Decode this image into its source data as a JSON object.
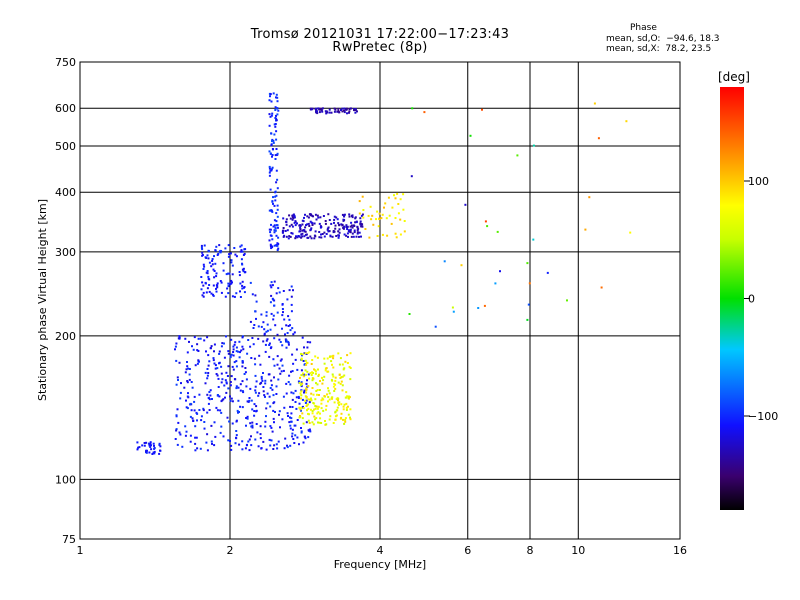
{
  "header": {
    "title_line1": "Tromsø 20121031 17:22:00−17:23:43",
    "title_line2": "RwPretec (8p)",
    "phase_heading": "Phase",
    "stats": [
      "mean, sd,O:  −94.6, 18.3",
      "mean, sd,X:  78.2, 23.5"
    ]
  },
  "colorbar": {
    "unit_label": "[deg]",
    "range": [
      -180,
      180
    ],
    "tick_values": [
      100,
      0,
      -100
    ],
    "tick_labels": [
      "100",
      "0",
      "−100"
    ]
  },
  "chart_data": {
    "type": "scatter",
    "title": "Tromsø 20121031 17:22:00−17:23:43",
    "subtitle": "RwPretec (8p)",
    "xlabel": "Frequency [MHz]",
    "ylabel": "Stationary phase Virtual Height [km]",
    "x_scale": "log",
    "y_scale": "log",
    "xlim": [
      1,
      16
    ],
    "ylim": [
      75,
      750
    ],
    "x_ticks": [
      1,
      2,
      4,
      6,
      8,
      10,
      16
    ],
    "y_ticks": [
      75,
      100,
      200,
      300,
      400,
      500,
      600,
      750
    ],
    "x_grid": [
      2,
      4,
      6,
      8,
      10
    ],
    "y_grid": [
      100,
      200,
      300,
      400,
      500,
      600
    ],
    "clusters": [
      {
        "name": "O-trace low E/F1 (blue)",
        "x": [
          1.55,
          2.9
        ],
        "y": [
          115,
          200
        ],
        "n": 500,
        "phase": [
          -120,
          -90
        ]
      },
      {
        "name": "O-trace F2 low (blue)",
        "x": [
          1.75,
          2.15
        ],
        "y": [
          240,
          310
        ],
        "n": 130,
        "phase": [
          -115,
          -95
        ]
      },
      {
        "name": "O-trace F2 cusp (blue)",
        "x": [
          2.2,
          2.7
        ],
        "y": [
          200,
          260
        ],
        "n": 70,
        "phase": [
          -120,
          -90
        ]
      },
      {
        "name": "O-trace base (blue)",
        "x": [
          1.3,
          1.45
        ],
        "y": [
          113,
          120
        ],
        "n": 35,
        "phase": [
          -115,
          -95
        ]
      },
      {
        "name": "O-trace vertical (blue)",
        "x": [
          2.4,
          2.5
        ],
        "y": [
          300,
          650
        ],
        "n": 120,
        "phase": [
          -115,
          -85
        ]
      },
      {
        "name": "O-trace F2 upper (dark blue)",
        "x": [
          2.55,
          3.7
        ],
        "y": [
          320,
          360
        ],
        "n": 220,
        "phase": [
          -140,
          -115
        ]
      },
      {
        "name": "O-trace top (dark blue)",
        "x": [
          2.9,
          3.6
        ],
        "y": [
          585,
          600
        ],
        "n": 60,
        "phase": [
          -145,
          -120
        ]
      },
      {
        "name": "X-trace (yellow-green)",
        "x": [
          2.75,
          3.5
        ],
        "y": [
          130,
          185
        ],
        "n": 240,
        "phase": [
          50,
          100
        ]
      },
      {
        "name": "X-trace F2 (yellow)",
        "x": [
          3.6,
          4.5
        ],
        "y": [
          320,
          400
        ],
        "n": 45,
        "phase": [
          70,
          110
        ]
      },
      {
        "name": "Scattered high-frequency points (mixed)",
        "x": [
          4.5,
          13
        ],
        "y": [
          200,
          620
        ],
        "n": 35,
        "phase": [
          -130,
          160
        ]
      }
    ]
  }
}
